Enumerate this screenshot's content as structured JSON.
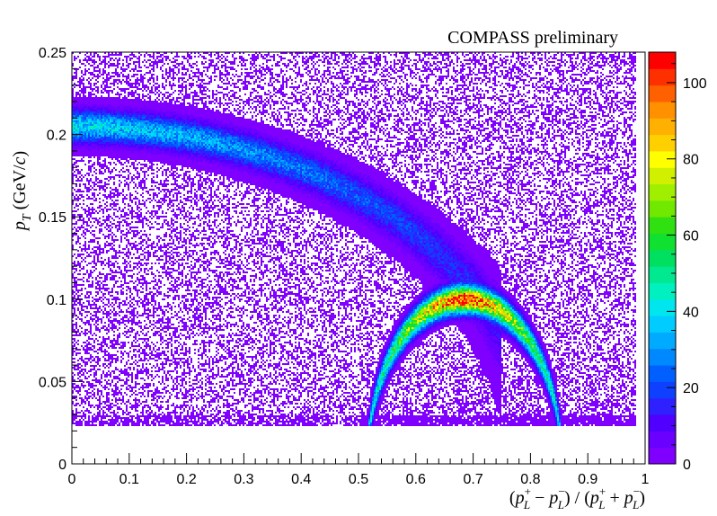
{
  "chart_data": {
    "type": "heatmap",
    "title": "COMPASS preliminary",
    "xlabel": "(p_L^+ − p_L^−) / (p_L^+ + p_L^−)",
    "xlabel_parts": {
      "open": "(",
      "p1": "p",
      "sup1": "+",
      "sub1": "L",
      "minus": " − ",
      "p2": "p",
      "sup2": "−",
      "sub2": "L",
      "mid": ") / (",
      "p3": "p",
      "sup3": "+",
      "sub3": "L",
      "plus": " + ",
      "p4": "p",
      "sup4": "−",
      "sub4": "L",
      "close": ")"
    },
    "ylabel": "p_T (GeV/c)",
    "ylabel_parts": {
      "p": "p",
      "sub": "T",
      "unit_open": " (GeV/",
      "c": "c",
      "unit_close": ")"
    },
    "xlim": [
      0,
      1
    ],
    "ylim": [
      0,
      0.25
    ],
    "x_ticks": [
      0,
      0.1,
      0.2,
      0.3,
      0.4,
      0.5,
      0.6,
      0.7,
      0.8,
      0.9,
      1
    ],
    "x_tick_labels": [
      "0",
      "0.1",
      "0.2",
      "0.3",
      "0.4",
      "0.5",
      "0.6",
      "0.7",
      "0.8",
      "0.9",
      "1"
    ],
    "y_ticks": [
      0,
      0.05,
      0.1,
      0.15,
      0.2,
      0.25
    ],
    "y_tick_labels": [
      "0",
      "0.05",
      "0.1",
      "0.15",
      "0.2",
      "0.25"
    ],
    "z_range": [
      0,
      108
    ],
    "z_ticks": [
      0,
      20,
      40,
      60,
      80,
      100
    ],
    "z_tick_labels": [
      "0",
      "20",
      "40",
      "60",
      "80",
      "100"
    ],
    "palette": [
      "#7f00ff",
      "#6a00ff",
      "#4f00ff",
      "#2f20ff",
      "#1040ff",
      "#0060ff",
      "#0088ff",
      "#00aaff",
      "#00ccff",
      "#00e6ee",
      "#00f0c0",
      "#00e890",
      "#00e060",
      "#10e030",
      "#30e010",
      "#70e800",
      "#a0ee00",
      "#d0f000",
      "#ffff00",
      "#ffd000",
      "#ffb000",
      "#ff9000",
      "#ff6000",
      "#ff3000",
      "#ff0000"
    ],
    "structures": [
      {
        "name": "lambda-band",
        "description_visible": false,
        "x_range": [
          0,
          0.72
        ],
        "peak_y_at_x0": 0.205,
        "peak_y_at_x0_6": 0.12,
        "peak_z": 40
      },
      {
        "name": "k0s-arc",
        "description_visible": false,
        "center_x": 0.685,
        "radius_x": 0.17,
        "peak_y": 0.1,
        "y_floor": 0.023,
        "peak_z": 105
      }
    ],
    "background_y_floor": 0.023,
    "grid": false,
    "legend": "colorbar-right"
  }
}
